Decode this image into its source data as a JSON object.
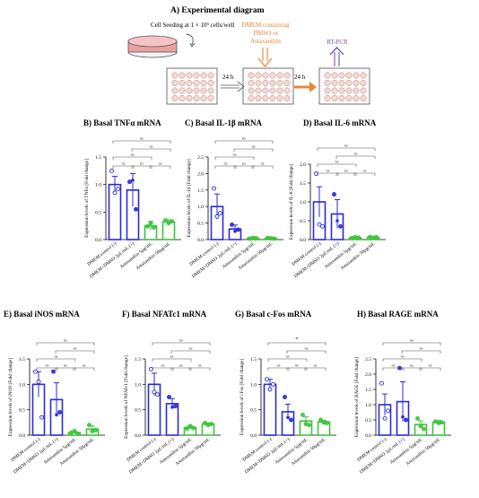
{
  "diagram": {
    "title": "A) Experimental diagram",
    "seeding_label": "Cell Seeding at 1 × 10⁵ cells/well",
    "interval1": "24 h",
    "interval2": "24 h",
    "treatment_label_lines": [
      "DMEM containing",
      "DMSO or",
      "Astaxanthin"
    ],
    "assay_label": "RT-PCR",
    "colors": {
      "treatment": "#e8873a",
      "assay": "#7b52a8",
      "dish": "#e8a0a0"
    }
  },
  "groups": [
    "DMEM control (-)",
    "DMEM+DMSO 2µL/mL (+)",
    "Astaxanthin 5µg/mL",
    "Astaxanthin 50µg/mL"
  ],
  "colors": {
    "control": "#2b2bd8",
    "astaxanthin": "#3cc43c"
  },
  "sig_ns": "ns",
  "sig_star": "*",
  "chart_data": [
    {
      "panel": "B",
      "title": "B) Basal TNFα mRNA",
      "type": "bar",
      "ylabel": "Expression levels of TNFα [Fold change]",
      "ylim": [
        0,
        1.5
      ],
      "yticks": [
        "0.0",
        "0.5",
        "1.0",
        "1.5"
      ],
      "values": [
        1.0,
        0.9,
        0.25,
        0.32
      ],
      "errors": [
        0.15,
        0.3,
        0.08,
        0.04
      ],
      "points": [
        [
          1.25,
          0.85,
          0.92
        ],
        [
          1.05,
          1.08,
          0.55
        ],
        [
          0.24,
          0.3,
          0.22
        ],
        [
          0.35,
          0.3,
          0.33
        ]
      ],
      "brackets": [
        [
          0,
          1,
          "ns"
        ],
        [
          0,
          2,
          "ns"
        ],
        [
          0,
          3,
          "ns"
        ],
        [
          1,
          2,
          "ns"
        ],
        [
          1,
          3,
          "ns"
        ],
        [
          2,
          3,
          "ns"
        ]
      ]
    },
    {
      "panel": "C",
      "title": "C) Basal IL-1β mRNA",
      "type": "bar",
      "ylabel": "Expression levels of IL-1β [Fold change]",
      "ylim": [
        0,
        2.5
      ],
      "yticks": [
        "0.0",
        "0.5",
        "1.0",
        "1.5",
        "2.0",
        "2.5"
      ],
      "values": [
        1.0,
        0.32,
        0.04,
        0.04
      ],
      "errors": [
        0.38,
        0.12,
        0.01,
        0.01
      ],
      "points": [
        [
          1.55,
          0.7,
          0.8
        ],
        [
          0.45,
          0.25,
          0.3
        ],
        [
          0.03,
          0.05,
          0.04
        ],
        [
          0.05,
          0.04,
          0.03
        ]
      ],
      "brackets": [
        [
          0,
          1,
          "ns"
        ],
        [
          0,
          2,
          "ns"
        ],
        [
          0,
          3,
          "ns"
        ],
        [
          1,
          2,
          "ns"
        ],
        [
          1,
          3,
          "ns"
        ],
        [
          2,
          3,
          "ns"
        ]
      ]
    },
    {
      "panel": "D",
      "title": "D) Basal IL-6 mRNA",
      "type": "bar",
      "ylabel": "Expression levels of IL-6 [Fold change]",
      "ylim": [
        0,
        2.0
      ],
      "yticks": [
        "0.0",
        "0.5",
        "1.0",
        "1.5",
        "2.0"
      ],
      "values": [
        1.0,
        0.68,
        0.05,
        0.06
      ],
      "errors": [
        0.4,
        0.38,
        0.01,
        0.01
      ],
      "points": [
        [
          1.75,
          0.4,
          0.35
        ],
        [
          1.2,
          0.5,
          0.35
        ],
        [
          0.04,
          0.06,
          0.05
        ],
        [
          0.07,
          0.05,
          0.06
        ]
      ],
      "brackets": [
        [
          0,
          1,
          "ns"
        ],
        [
          0,
          2,
          "ns"
        ],
        [
          0,
          3,
          "ns"
        ],
        [
          1,
          2,
          "ns"
        ],
        [
          1,
          3,
          "ns"
        ],
        [
          2,
          3,
          "ns"
        ]
      ]
    },
    {
      "panel": "E",
      "title": "E) Basal iNOS mRNA",
      "type": "bar",
      "ylabel": "Expression levels of iNOS [Fold change]",
      "ylim": [
        0,
        1.5
      ],
      "yticks": [
        "0.0",
        "0.5",
        "1.0",
        "1.5"
      ],
      "values": [
        1.0,
        0.7,
        0.05,
        0.12
      ],
      "errors": [
        0.25,
        0.33,
        0.02,
        0.06
      ],
      "points": [
        [
          1.25,
          1.05,
          0.35
        ],
        [
          1.25,
          0.4,
          0.45
        ],
        [
          0.05,
          0.08,
          0.03
        ],
        [
          0.2,
          0.08,
          0.1
        ]
      ],
      "brackets": [
        [
          0,
          1,
          "ns"
        ],
        [
          0,
          2,
          "ns"
        ],
        [
          0,
          3,
          "ns"
        ],
        [
          1,
          2,
          "ns"
        ],
        [
          1,
          3,
          "ns"
        ],
        [
          2,
          3,
          "ns"
        ]
      ]
    },
    {
      "panel": "F",
      "title": "F) Basal NFATc1 mRNA",
      "type": "bar",
      "ylabel": "Expression levels of NFATc1 [Fold change]",
      "ylim": [
        0,
        1.5
      ],
      "yticks": [
        "0.0",
        "0.5",
        "1.0",
        "1.5"
      ],
      "values": [
        1.0,
        0.62,
        0.15,
        0.22
      ],
      "errors": [
        0.22,
        0.1,
        0.03,
        0.02
      ],
      "points": [
        [
          1.3,
          0.85,
          0.8
        ],
        [
          0.75,
          0.55,
          0.57
        ],
        [
          0.13,
          0.18,
          0.14
        ],
        [
          0.24,
          0.2,
          0.22
        ]
      ],
      "brackets": [
        [
          0,
          1,
          "ns"
        ],
        [
          0,
          2,
          "ns"
        ],
        [
          0,
          3,
          "ns"
        ],
        [
          1,
          2,
          "ns"
        ],
        [
          1,
          3,
          "ns"
        ],
        [
          2,
          3,
          "ns"
        ]
      ]
    },
    {
      "panel": "G",
      "title": "G) Basal c-Fos mRNA",
      "type": "bar",
      "ylabel": "Expression levels of cFos [Fold change]",
      "ylim": [
        0,
        1.5
      ],
      "yticks": [
        "0.0",
        "0.5",
        "1.0",
        "1.5"
      ],
      "values": [
        1.0,
        0.46,
        0.28,
        0.26
      ],
      "errors": [
        0.1,
        0.15,
        0.08,
        0.03
      ],
      "points": [
        [
          1.1,
          0.9,
          1.0
        ],
        [
          0.75,
          0.35,
          0.3
        ],
        [
          0.4,
          0.22,
          0.2
        ],
        [
          0.3,
          0.25,
          0.24
        ]
      ],
      "brackets": [
        [
          0,
          1,
          "ns"
        ],
        [
          0,
          2,
          "ns"
        ],
        [
          0,
          3,
          "*"
        ],
        [
          1,
          2,
          "ns"
        ],
        [
          1,
          3,
          "ns"
        ],
        [
          2,
          3,
          "ns"
        ]
      ]
    },
    {
      "panel": "H",
      "title": "H) Basal RAGE mRNA",
      "type": "bar",
      "ylabel": "Expression levels of RAGE [Fold change]",
      "ylim": [
        0,
        2.5
      ],
      "yticks": [
        "0.0",
        "0.5",
        "1.0",
        "1.5",
        "2.0",
        "2.5"
      ],
      "values": [
        1.0,
        1.1,
        0.35,
        0.42
      ],
      "errors": [
        0.35,
        0.65,
        0.12,
        0.06
      ],
      "points": [
        [
          1.7,
          0.55,
          0.8
        ],
        [
          2.2,
          0.6,
          0.5
        ],
        [
          0.55,
          0.3,
          0.2
        ],
        [
          0.45,
          0.4,
          0.42
        ]
      ],
      "brackets": [
        [
          0,
          1,
          "ns"
        ],
        [
          0,
          2,
          "ns"
        ],
        [
          0,
          3,
          "ns"
        ],
        [
          1,
          2,
          "ns"
        ],
        [
          1,
          3,
          "ns"
        ],
        [
          2,
          3,
          "ns"
        ]
      ]
    }
  ]
}
